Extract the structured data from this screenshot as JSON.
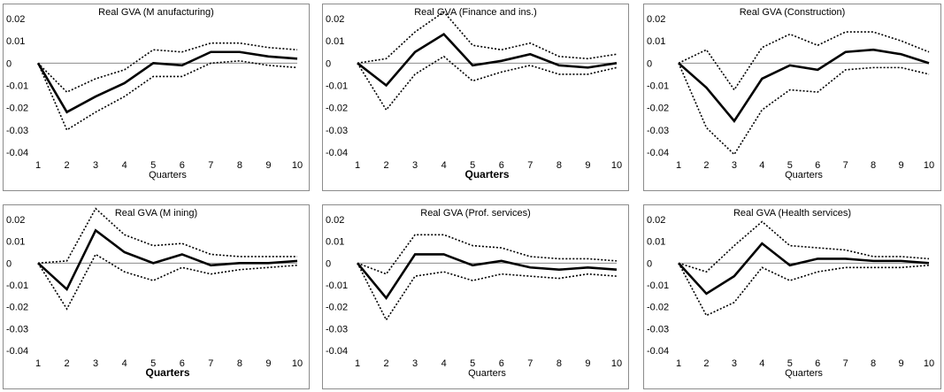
{
  "chart_data": [
    {
      "type": "line",
      "title": "Real GVA (M anufacturing)",
      "xlabel": "Quarters",
      "xlabel_bold": false,
      "x": [
        1,
        2,
        3,
        4,
        5,
        6,
        7,
        8,
        9,
        10
      ],
      "ylim": [
        -0.04,
        0.02
      ],
      "yticks": [
        "0.02",
        "0.01",
        "0",
        "-0.01",
        "-0.02",
        "-0.03",
        "-0.04"
      ],
      "grid": false,
      "series": [
        {
          "style": "solid",
          "values": [
            0,
            -0.022,
            -0.015,
            -0.009,
            0.0,
            -0.001,
            0.005,
            0.005,
            0.003,
            0.002
          ]
        },
        {
          "style": "dotted",
          "values": [
            0,
            -0.013,
            -0.007,
            -0.003,
            0.006,
            0.005,
            0.009,
            0.009,
            0.007,
            0.006
          ]
        },
        {
          "style": "dotted",
          "values": [
            0,
            -0.03,
            -0.022,
            -0.015,
            -0.006,
            -0.006,
            0.0,
            0.001,
            -0.001,
            -0.002
          ]
        }
      ]
    },
    {
      "type": "line",
      "title": "Real GVA (Finance and ins.)",
      "xlabel": "Quarters",
      "xlabel_bold": true,
      "x": [
        1,
        2,
        3,
        4,
        5,
        6,
        7,
        8,
        9,
        10
      ],
      "ylim": [
        -0.04,
        0.02
      ],
      "yticks": [
        "0.02",
        "0.01",
        "0",
        "-0.01",
        "-0.02",
        "-0.03",
        "-0.04"
      ],
      "grid": false,
      "series": [
        {
          "style": "solid",
          "values": [
            0,
            -0.01,
            0.005,
            0.013,
            -0.001,
            0.001,
            0.004,
            -0.001,
            -0.002,
            0.0
          ]
        },
        {
          "style": "dotted",
          "values": [
            0,
            0.002,
            0.014,
            0.023,
            0.008,
            0.006,
            0.009,
            0.003,
            0.002,
            0.004
          ]
        },
        {
          "style": "dotted",
          "values": [
            0,
            -0.021,
            -0.005,
            0.003,
            -0.008,
            -0.004,
            -0.001,
            -0.005,
            -0.005,
            -0.002
          ]
        }
      ]
    },
    {
      "type": "line",
      "title": "Real GVA (Construction)",
      "xlabel": "Quarters",
      "xlabel_bold": false,
      "x": [
        1,
        2,
        3,
        4,
        5,
        6,
        7,
        8,
        9,
        10
      ],
      "ylim": [
        -0.04,
        0.02
      ],
      "yticks": [
        "0.02",
        "0.01",
        "0",
        "-0.01",
        "-0.02",
        "-0.03",
        "-0.04"
      ],
      "grid": false,
      "series": [
        {
          "style": "solid",
          "values": [
            0,
            -0.011,
            -0.026,
            -0.007,
            -0.001,
            -0.003,
            0.005,
            0.006,
            0.004,
            0.0
          ]
        },
        {
          "style": "dotted",
          "values": [
            0,
            0.006,
            -0.012,
            0.007,
            0.013,
            0.008,
            0.014,
            0.014,
            0.01,
            0.005
          ]
        },
        {
          "style": "dotted",
          "values": [
            0,
            -0.029,
            -0.041,
            -0.021,
            -0.012,
            -0.013,
            -0.003,
            -0.002,
            -0.002,
            -0.005
          ]
        }
      ]
    },
    {
      "type": "line",
      "title": "Real GVA (M ining)",
      "xlabel": "Quarters",
      "xlabel_bold": true,
      "x": [
        1,
        2,
        3,
        4,
        5,
        6,
        7,
        8,
        9,
        10
      ],
      "ylim": [
        -0.04,
        0.02
      ],
      "yticks": [
        "0.02",
        "0.01",
        "0",
        "-0.01",
        "-0.02",
        "-0.03",
        "-0.04"
      ],
      "grid": false,
      "series": [
        {
          "style": "solid",
          "values": [
            0,
            -0.012,
            0.015,
            0.005,
            0.0,
            0.004,
            -0.001,
            0.0,
            0.0,
            0.001
          ]
        },
        {
          "style": "dotted",
          "values": [
            0,
            0.001,
            0.025,
            0.013,
            0.008,
            0.009,
            0.004,
            0.003,
            0.003,
            0.003
          ]
        },
        {
          "style": "dotted",
          "values": [
            0,
            -0.021,
            0.004,
            -0.004,
            -0.008,
            -0.002,
            -0.005,
            -0.003,
            -0.002,
            -0.001
          ]
        }
      ]
    },
    {
      "type": "line",
      "title": "Real GVA (Prof. services)",
      "xlabel": "Quarters",
      "xlabel_bold": false,
      "x": [
        1,
        2,
        3,
        4,
        5,
        6,
        7,
        8,
        9,
        10
      ],
      "ylim": [
        -0.04,
        0.02
      ],
      "yticks": [
        "0.02",
        "0.01",
        "0",
        "-0.01",
        "-0.02",
        "-0.03",
        "-0.04"
      ],
      "grid": false,
      "series": [
        {
          "style": "solid",
          "values": [
            0,
            -0.016,
            0.004,
            0.004,
            -0.001,
            0.001,
            -0.002,
            -0.003,
            -0.002,
            -0.003
          ]
        },
        {
          "style": "dotted",
          "values": [
            0,
            -0.005,
            0.013,
            0.013,
            0.008,
            0.007,
            0.003,
            0.002,
            0.002,
            0.001
          ]
        },
        {
          "style": "dotted",
          "values": [
            0,
            -0.026,
            -0.006,
            -0.004,
            -0.008,
            -0.005,
            -0.006,
            -0.007,
            -0.005,
            -0.006
          ]
        }
      ]
    },
    {
      "type": "line",
      "title": "Real GVA (Health services)",
      "xlabel": "Quarters",
      "xlabel_bold": false,
      "x": [
        1,
        2,
        3,
        4,
        5,
        6,
        7,
        8,
        9,
        10
      ],
      "ylim": [
        -0.04,
        0.02
      ],
      "yticks": [
        "0.02",
        "0.01",
        "0",
        "-0.01",
        "-0.02",
        "-0.03",
        "-0.04"
      ],
      "grid": false,
      "series": [
        {
          "style": "solid",
          "values": [
            0,
            -0.014,
            -0.006,
            0.009,
            -0.001,
            0.002,
            0.002,
            0.001,
            0.001,
            0.0
          ]
        },
        {
          "style": "dotted",
          "values": [
            0,
            -0.004,
            0.008,
            0.019,
            0.008,
            0.007,
            0.006,
            0.003,
            0.003,
            0.002
          ]
        },
        {
          "style": "dotted",
          "values": [
            0,
            -0.024,
            -0.018,
            -0.002,
            -0.008,
            -0.004,
            -0.002,
            -0.002,
            -0.002,
            -0.001
          ]
        }
      ]
    }
  ]
}
